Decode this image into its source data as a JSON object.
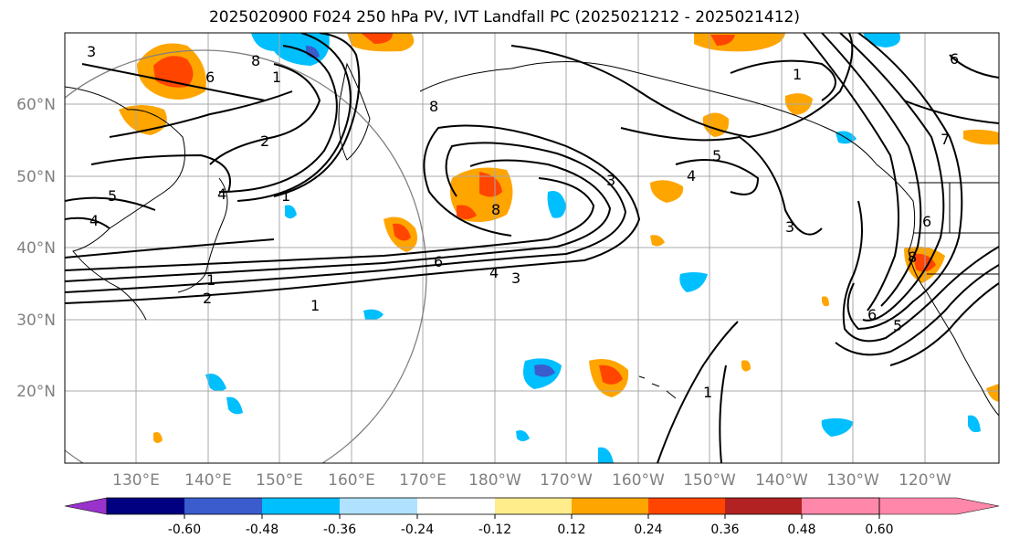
{
  "title": "2025020900 F024 250 hPa PV, IVT Landfall PC (2025021212 - 2025021412)",
  "lat_labels": [
    "60°N",
    "50°N",
    "40°N",
    "30°N",
    "20°N"
  ],
  "lon_labels": [
    "130°E",
    "140°E",
    "150°E",
    "160°E",
    "170°E",
    "180°W",
    "170°W",
    "160°W",
    "150°W",
    "140°W",
    "130°W",
    "120°W"
  ],
  "colorbar": {
    "colors": [
      "#9933cc",
      "#000080",
      "#3a5ccc",
      "#00bfff",
      "#b0e2ff",
      "#ffffff",
      "#ffec8b",
      "#ffa500",
      "#ff4500",
      "#b22222",
      "#ff88aa"
    ],
    "tick_labels": [
      "-0.60",
      "-0.48",
      "-0.36",
      "-0.24",
      "-0.12",
      "0.12",
      "0.24",
      "0.36",
      "0.48",
      "0.60"
    ]
  },
  "contour_labels": [
    "3",
    "8",
    "6",
    "2",
    "1",
    "5",
    "4",
    "1",
    "3",
    "6",
    "8",
    "8",
    "4",
    "5",
    "3",
    "1",
    "6",
    "4",
    "3",
    "2",
    "1",
    "6",
    "5",
    "1",
    "7",
    "6",
    "1",
    "8",
    "4"
  ]
}
